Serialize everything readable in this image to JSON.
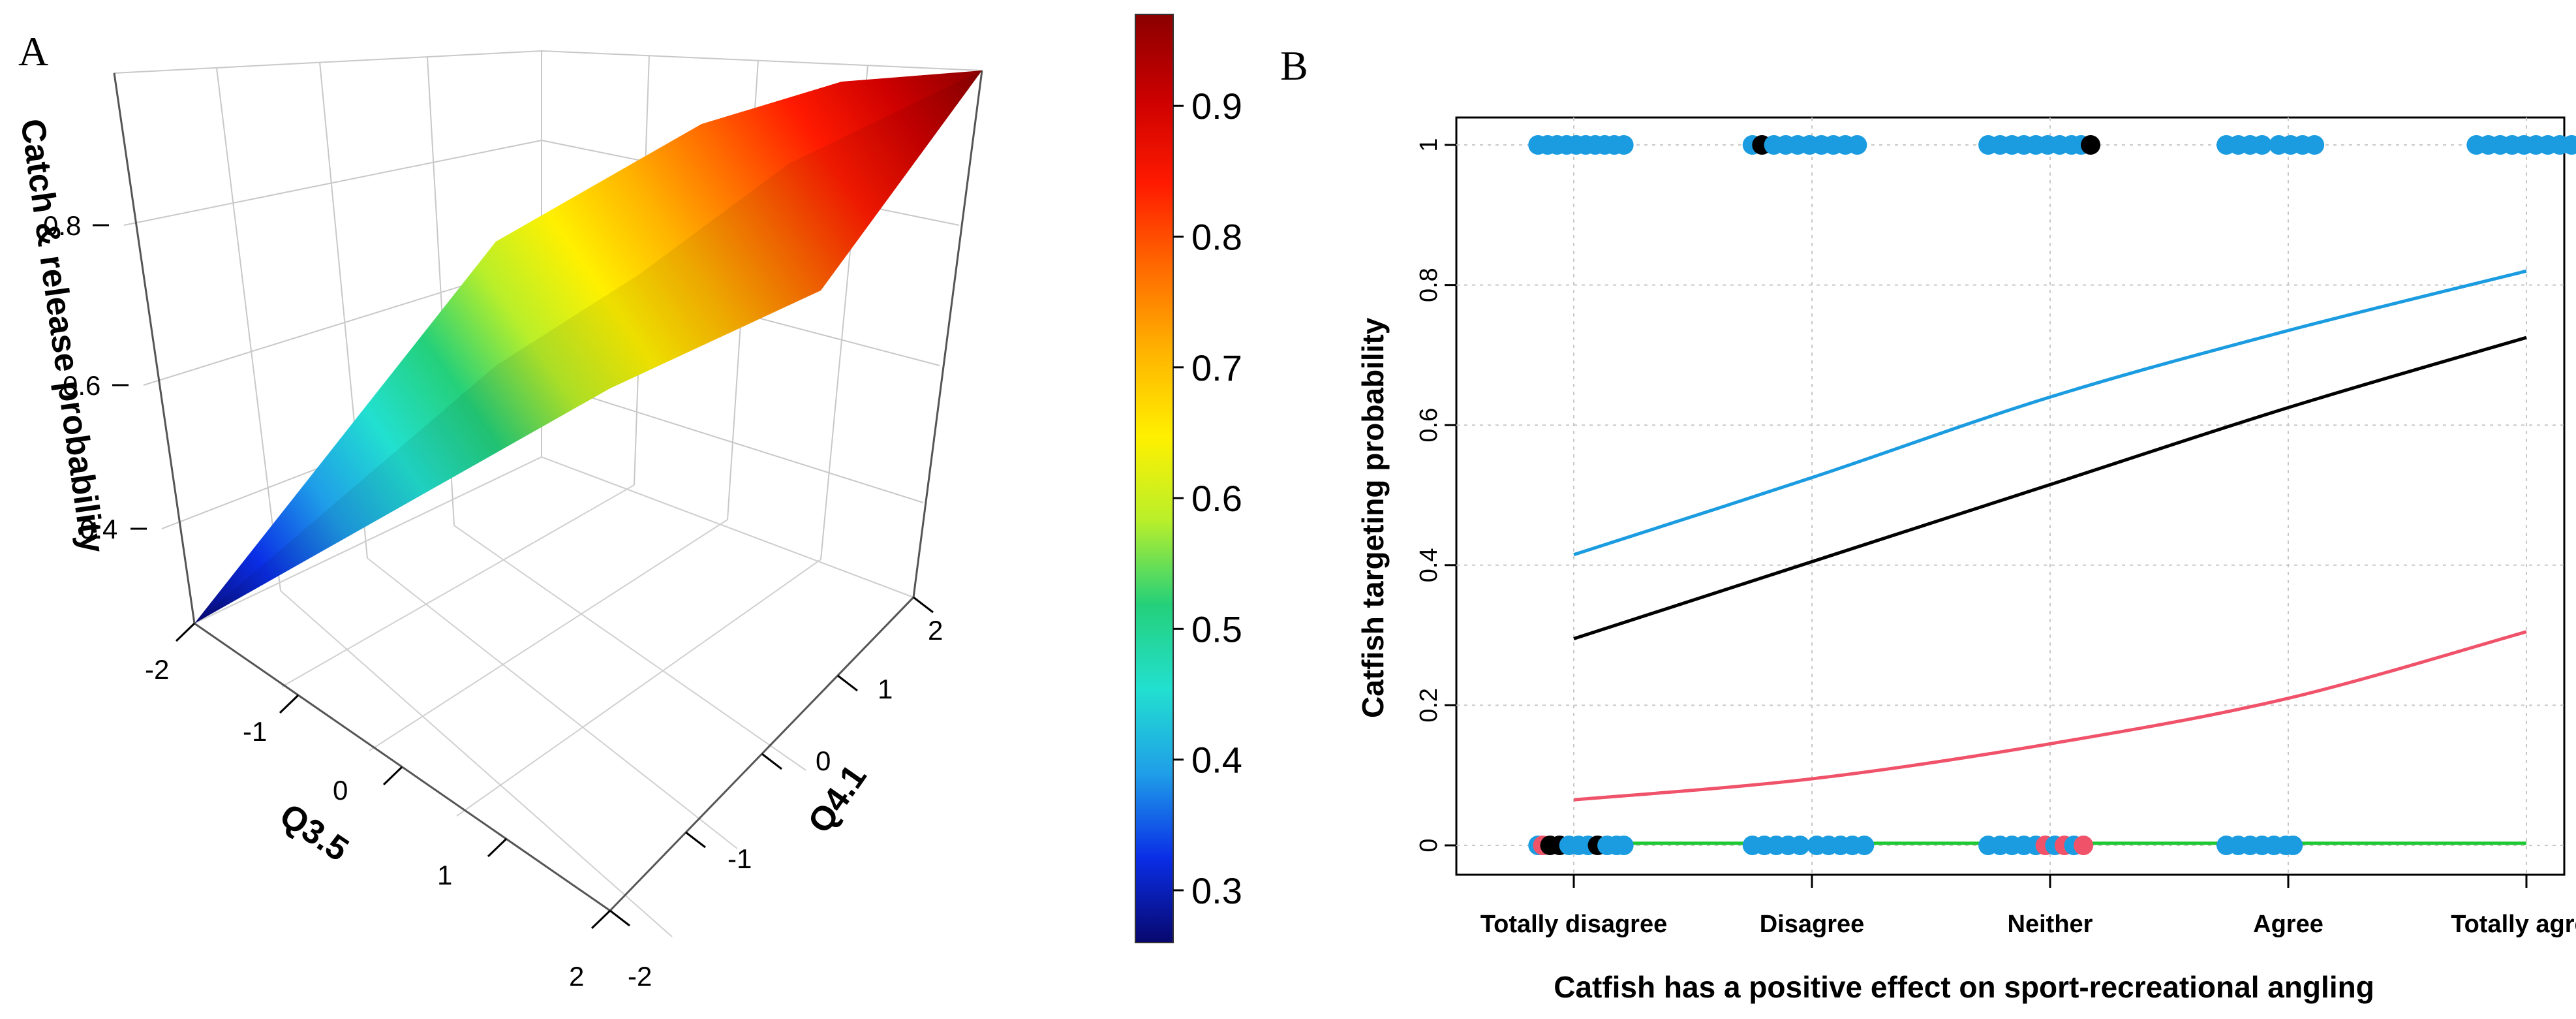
{
  "chart_data": [
    {
      "type": "surface3d",
      "panel_label": "A",
      "xlabel": "Q3.5",
      "ylabel": "Q4.1",
      "zlabel": "Catch & release probability",
      "x_ticks": [
        "-2",
        "-1",
        "0",
        "1",
        "2"
      ],
      "y_ticks": [
        "-2",
        "-1",
        "0",
        "1",
        "2"
      ],
      "z_ticks": [
        "0.4",
        "0.6",
        "0.8"
      ],
      "xlim": [
        -2,
        2
      ],
      "ylim": [
        -2,
        2
      ],
      "zlim": [
        0.25,
        0.97
      ],
      "corners": [
        {
          "x": -2,
          "y": -2,
          "z": 0.27
        },
        {
          "x": 2,
          "y": -2,
          "z": 0.58
        },
        {
          "x": -2,
          "y": 2,
          "z": 0.72
        },
        {
          "x": 2,
          "y": 2,
          "z": 0.97
        }
      ],
      "colorbar": {
        "ticks": [
          "0.3",
          "0.4",
          "0.5",
          "0.6",
          "0.7",
          "0.8",
          "0.9"
        ],
        "range": [
          0.26,
          0.97
        ],
        "palette": [
          "#08086e",
          "#0a2ee6",
          "#1f9ee8",
          "#22e0d0",
          "#24d07a",
          "#b9ef2a",
          "#fff000",
          "#ffb400",
          "#ff6a00",
          "#ff1a00",
          "#cc0000",
          "#8b0000"
        ]
      }
    },
    {
      "type": "line",
      "panel_label": "B",
      "title": "",
      "xlabel": "Catfish has a positive effect on sport-recreational angling",
      "ylabel": "Catfish targeting probability",
      "categories": [
        "Totally disagree",
        "Disagree",
        "Neither",
        "Agree",
        "Totally agree"
      ],
      "y_ticks": [
        "0",
        "0.2",
        "0.4",
        "0.6",
        "0.8",
        "1"
      ],
      "ylim": [
        0,
        1
      ],
      "grid": true,
      "series": [
        {
          "name": "blue",
          "color": "#1b9ce0",
          "x": [
            1,
            2,
            3,
            4,
            5
          ],
          "values": [
            0.415,
            0.525,
            0.64,
            0.735,
            0.82
          ]
        },
        {
          "name": "black",
          "color": "#000000",
          "x": [
            1,
            2,
            3,
            4,
            5
          ],
          "values": [
            0.295,
            0.405,
            0.515,
            0.625,
            0.725
          ]
        },
        {
          "name": "red",
          "color": "#f0526a",
          "x": [
            1,
            2,
            3,
            4,
            5
          ],
          "values": [
            0.065,
            0.095,
            0.145,
            0.21,
            0.305
          ]
        },
        {
          "name": "green",
          "color": "#1ec832",
          "x": [
            1,
            5
          ],
          "values": [
            0.003,
            0.003
          ]
        }
      ],
      "observations": [
        {
          "x": 0.85,
          "y": 1,
          "color": "#1b9ce0"
        },
        {
          "x": 0.89,
          "y": 1,
          "color": "#1b9ce0"
        },
        {
          "x": 0.93,
          "y": 1,
          "color": "#1b9ce0"
        },
        {
          "x": 0.97,
          "y": 1,
          "color": "#1b9ce0"
        },
        {
          "x": 1.01,
          "y": 1,
          "color": "#1b9ce0"
        },
        {
          "x": 1.05,
          "y": 1,
          "color": "#1b9ce0"
        },
        {
          "x": 1.09,
          "y": 1,
          "color": "#1b9ce0"
        },
        {
          "x": 1.13,
          "y": 1,
          "color": "#1b9ce0"
        },
        {
          "x": 1.17,
          "y": 1,
          "color": "#1b9ce0"
        },
        {
          "x": 1.21,
          "y": 1,
          "color": "#1b9ce0"
        },
        {
          "x": 1.75,
          "y": 1,
          "color": "#1b9ce0"
        },
        {
          "x": 1.79,
          "y": 1,
          "color": "#000000"
        },
        {
          "x": 1.84,
          "y": 1,
          "color": "#1b9ce0"
        },
        {
          "x": 1.89,
          "y": 1,
          "color": "#1b9ce0"
        },
        {
          "x": 1.94,
          "y": 1,
          "color": "#1b9ce0"
        },
        {
          "x": 1.99,
          "y": 1,
          "color": "#1b9ce0"
        },
        {
          "x": 2.04,
          "y": 1,
          "color": "#1b9ce0"
        },
        {
          "x": 2.09,
          "y": 1,
          "color": "#1b9ce0"
        },
        {
          "x": 2.14,
          "y": 1,
          "color": "#1b9ce0"
        },
        {
          "x": 2.19,
          "y": 1,
          "color": "#1b9ce0"
        },
        {
          "x": 2.74,
          "y": 1,
          "color": "#1b9ce0"
        },
        {
          "x": 2.79,
          "y": 1,
          "color": "#1b9ce0"
        },
        {
          "x": 2.84,
          "y": 1,
          "color": "#1b9ce0"
        },
        {
          "x": 2.89,
          "y": 1,
          "color": "#1b9ce0"
        },
        {
          "x": 2.94,
          "y": 1,
          "color": "#1b9ce0"
        },
        {
          "x": 2.99,
          "y": 1,
          "color": "#1b9ce0"
        },
        {
          "x": 3.04,
          "y": 1,
          "color": "#1b9ce0"
        },
        {
          "x": 3.09,
          "y": 1,
          "color": "#1b9ce0"
        },
        {
          "x": 3.13,
          "y": 1,
          "color": "#1b9ce0"
        },
        {
          "x": 3.17,
          "y": 1,
          "color": "#000000"
        },
        {
          "x": 3.74,
          "y": 1,
          "color": "#1b9ce0"
        },
        {
          "x": 3.79,
          "y": 1,
          "color": "#1b9ce0"
        },
        {
          "x": 3.84,
          "y": 1,
          "color": "#1b9ce0"
        },
        {
          "x": 3.89,
          "y": 1,
          "color": "#1b9ce0"
        },
        {
          "x": 3.96,
          "y": 1,
          "color": "#1b9ce0"
        },
        {
          "x": 4.01,
          "y": 1,
          "color": "#1b9ce0"
        },
        {
          "x": 4.06,
          "y": 1,
          "color": "#1b9ce0"
        },
        {
          "x": 4.11,
          "y": 1,
          "color": "#1b9ce0"
        },
        {
          "x": 4.79,
          "y": 1,
          "color": "#1b9ce0"
        },
        {
          "x": 4.84,
          "y": 1,
          "color": "#1b9ce0"
        },
        {
          "x": 4.89,
          "y": 1,
          "color": "#1b9ce0"
        },
        {
          "x": 4.94,
          "y": 1,
          "color": "#1b9ce0"
        },
        {
          "x": 4.99,
          "y": 1,
          "color": "#1b9ce0"
        },
        {
          "x": 5.04,
          "y": 1,
          "color": "#1b9ce0"
        },
        {
          "x": 5.09,
          "y": 1,
          "color": "#1b9ce0"
        },
        {
          "x": 5.14,
          "y": 1,
          "color": "#1b9ce0"
        },
        {
          "x": 5.19,
          "y": 1,
          "color": "#1b9ce0"
        },
        {
          "x": 0.85,
          "y": 0,
          "color": "#1b9ce0"
        },
        {
          "x": 0.87,
          "y": 0,
          "color": "#f0526a"
        },
        {
          "x": 0.9,
          "y": 0,
          "color": "#000000"
        },
        {
          "x": 0.94,
          "y": 0,
          "color": "#000000"
        },
        {
          "x": 0.98,
          "y": 0,
          "color": "#1b9ce0"
        },
        {
          "x": 1.02,
          "y": 0,
          "color": "#1b9ce0"
        },
        {
          "x": 1.06,
          "y": 0,
          "color": "#1b9ce0"
        },
        {
          "x": 1.1,
          "y": 0,
          "color": "#000000"
        },
        {
          "x": 1.14,
          "y": 0,
          "color": "#1b9ce0"
        },
        {
          "x": 1.18,
          "y": 0,
          "color": "#1b9ce0"
        },
        {
          "x": 1.21,
          "y": 0,
          "color": "#1b9ce0"
        },
        {
          "x": 1.75,
          "y": 0,
          "color": "#1b9ce0"
        },
        {
          "x": 1.8,
          "y": 0,
          "color": "#1b9ce0"
        },
        {
          "x": 1.85,
          "y": 0,
          "color": "#1b9ce0"
        },
        {
          "x": 1.9,
          "y": 0,
          "color": "#1b9ce0"
        },
        {
          "x": 1.95,
          "y": 0,
          "color": "#1b9ce0"
        },
        {
          "x": 2.02,
          "y": 0,
          "color": "#1b9ce0"
        },
        {
          "x": 2.07,
          "y": 0,
          "color": "#1b9ce0"
        },
        {
          "x": 2.12,
          "y": 0,
          "color": "#1b9ce0"
        },
        {
          "x": 2.17,
          "y": 0,
          "color": "#1b9ce0"
        },
        {
          "x": 2.22,
          "y": 0,
          "color": "#1b9ce0"
        },
        {
          "x": 2.74,
          "y": 0,
          "color": "#1b9ce0"
        },
        {
          "x": 2.79,
          "y": 0,
          "color": "#1b9ce0"
        },
        {
          "x": 2.84,
          "y": 0,
          "color": "#1b9ce0"
        },
        {
          "x": 2.89,
          "y": 0,
          "color": "#1b9ce0"
        },
        {
          "x": 2.94,
          "y": 0,
          "color": "#1b9ce0"
        },
        {
          "x": 2.98,
          "y": 0,
          "color": "#f0526a"
        },
        {
          "x": 3.02,
          "y": 0,
          "color": "#1b9ce0"
        },
        {
          "x": 3.06,
          "y": 0,
          "color": "#f0526a"
        },
        {
          "x": 3.1,
          "y": 0,
          "color": "#1b9ce0"
        },
        {
          "x": 3.14,
          "y": 0,
          "color": "#f0526a"
        },
        {
          "x": 3.74,
          "y": 0,
          "color": "#1b9ce0"
        },
        {
          "x": 3.79,
          "y": 0,
          "color": "#1b9ce0"
        },
        {
          "x": 3.84,
          "y": 0,
          "color": "#1b9ce0"
        },
        {
          "x": 3.89,
          "y": 0,
          "color": "#1b9ce0"
        },
        {
          "x": 3.94,
          "y": 0,
          "color": "#1b9ce0"
        },
        {
          "x": 3.99,
          "y": 0,
          "color": "#1b9ce0"
        },
        {
          "x": 4.02,
          "y": 0,
          "color": "#1b9ce0"
        }
      ]
    }
  ]
}
